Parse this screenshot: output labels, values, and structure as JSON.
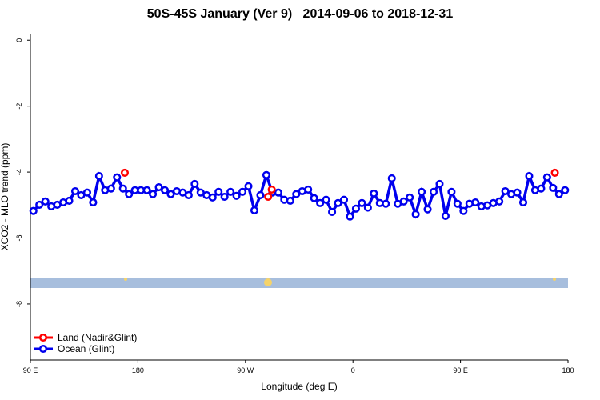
{
  "chart_data": {
    "type": "line",
    "title": "50S-45S January (Ver 9)   2014-09-06 to 2018-12-31",
    "x_label": "Longitude (deg E)",
    "y_label": "XCO2 - MLO trend (ppm)",
    "xlim": [
      90,
      540
    ],
    "ylim": [
      -9.7,
      0.2
    ],
    "xticks": [
      {
        "value": 90,
        "label": "90 E"
      },
      180,
      {
        "value": 270,
        "label": "90 W"
      },
      {
        "value": 360,
        "label": "0"
      },
      {
        "value": 450,
        "label": "90 E"
      },
      {
        "value": 540,
        "label": "180"
      }
    ],
    "yticks": [
      0,
      -2,
      -4,
      -6,
      -8
    ],
    "legend": "bottom-left",
    "series": [
      {
        "name": "Land (Nadir&Glint)",
        "color": "#ff0000",
        "x": [
          169,
          289,
          292,
          529
        ],
        "values": [
          -4.02,
          -4.75,
          -4.53,
          -4.02
        ]
      },
      {
        "name": "Ocean (Glint)",
        "color": "#0000ee",
        "x": [
          92.5,
          97.5,
          102.5,
          107.5,
          112.5,
          117.5,
          122.5,
          127.5,
          132.5,
          137.5,
          142.5,
          147.5,
          152.5,
          157.5,
          162.5,
          167.5,
          172.5,
          177.5,
          182.5,
          187.5,
          192.5,
          197.5,
          202.5,
          207.5,
          212.5,
          217.5,
          222.5,
          227.5,
          232.5,
          237.5,
          242.5,
          247.5,
          252.5,
          257.5,
          262.5,
          267.5,
          272.5,
          277.5,
          282.5,
          287.5,
          292.5,
          297.5,
          302.5,
          307.5,
          312.5,
          317.5,
          322.5,
          327.5,
          332.5,
          337.5,
          342.5,
          347.5,
          352.5,
          357.5,
          362.5,
          367.5,
          372.5,
          377.5,
          382.5,
          387.5,
          392.5,
          397.5,
          402.5,
          407.5,
          412.5,
          417.5,
          422.5,
          427.5,
          432.5,
          437.5,
          442.5,
          447.5,
          452.5,
          457.5,
          462.5,
          467.5,
          472.5,
          477.5,
          482.5,
          487.5,
          492.5,
          497.5,
          502.5,
          507.5,
          512.5,
          517.5,
          522.5,
          527.5,
          532.5,
          537.5
        ],
        "values": [
          -5.18,
          -4.99,
          -4.89,
          -5.04,
          -4.99,
          -4.92,
          -4.87,
          -4.58,
          -4.7,
          -4.62,
          -4.92,
          -4.12,
          -4.55,
          -4.5,
          -4.16,
          -4.5,
          -4.67,
          -4.55,
          -4.55,
          -4.55,
          -4.67,
          -4.46,
          -4.55,
          -4.67,
          -4.58,
          -4.62,
          -4.7,
          -4.36,
          -4.62,
          -4.7,
          -4.77,
          -4.6,
          -4.75,
          -4.6,
          -4.72,
          -4.6,
          -4.43,
          -5.16,
          -4.7,
          -4.09,
          -4.62,
          -4.62,
          -4.84,
          -4.87,
          -4.67,
          -4.58,
          -4.53,
          -4.79,
          -4.94,
          -4.84,
          -5.21,
          -4.94,
          -4.84,
          -5.35,
          -5.11,
          -4.94,
          -5.08,
          -4.65,
          -4.94,
          -4.96,
          -4.19,
          -4.96,
          -4.89,
          -4.77,
          -5.28,
          -4.6,
          -5.13,
          -4.6,
          -4.36,
          -5.33,
          -4.6,
          -4.96,
          -5.18,
          -4.96,
          -4.92,
          -5.04,
          -5.01,
          -4.94,
          -4.89,
          -4.58,
          -4.67,
          -4.62,
          -4.92,
          -4.12,
          -4.55,
          -4.5,
          -4.16,
          -4.48,
          -4.67,
          -4.55
        ]
      }
    ]
  }
}
